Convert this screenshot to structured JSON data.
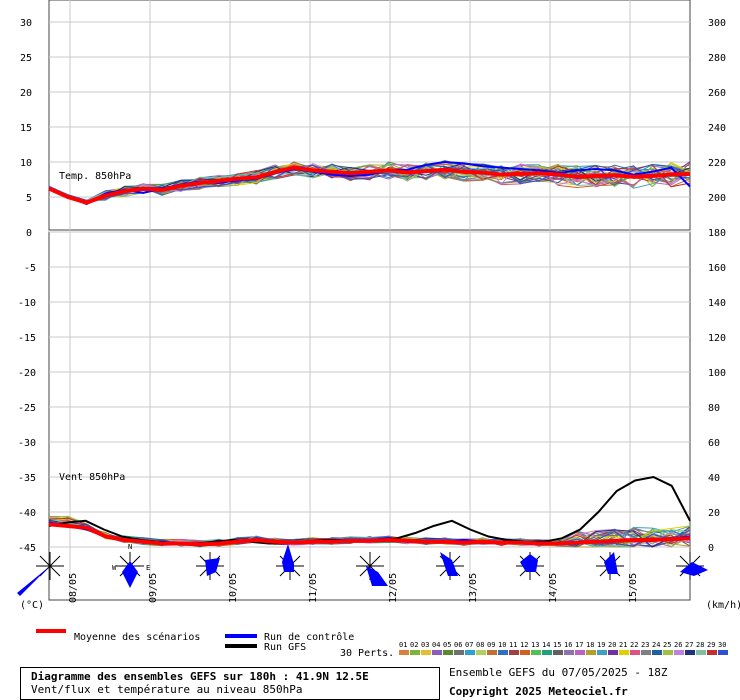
{
  "chart_data": {
    "type": "line",
    "upper_panel": {
      "label": "Temp. 850hPa",
      "left_ticks": [
        "30",
        "25",
        "20",
        "15",
        "10",
        "5",
        "0"
      ],
      "right_ticks": [
        "300",
        "280",
        "260",
        "240",
        "220",
        "200",
        "180"
      ],
      "mean_series": [
        6.2,
        5.0,
        4.2,
        5.2,
        5.8,
        6.2,
        6.0,
        6.6,
        7.0,
        7.3,
        7.6,
        7.8,
        8.6,
        9.2,
        8.8,
        8.6,
        8.4,
        8.6,
        8.8,
        8.5,
        8.7,
        8.9,
        8.6,
        8.5,
        8.2,
        8.3,
        8.4,
        8.2,
        7.9,
        8.0,
        8.1,
        7.9,
        8.0,
        8.2,
        8.3
      ],
      "control_series": [
        6.3,
        5.0,
        4.0,
        5.5,
        6.0,
        5.6,
        6.2,
        6.8,
        7.2,
        7.0,
        7.4,
        7.6,
        8.4,
        9.0,
        8.6,
        8.2,
        8.0,
        8.2,
        8.8,
        8.9,
        9.6,
        10.0,
        9.8,
        9.4,
        9.2,
        9.0,
        8.8,
        8.4,
        8.8,
        9.0,
        8.8,
        8.2,
        8.6,
        9.2,
        6.5
      ]
    },
    "lower_panel": {
      "label": "Vent 850hPa",
      "left_ticks": [
        "-5",
        "-10",
        "-15",
        "-20",
        "-25",
        "-30",
        "-35",
        "-40",
        "-45"
      ],
      "right_ticks": [
        "160",
        "140",
        "120",
        "100",
        "80",
        "60",
        "40",
        "20",
        "0"
      ],
      "mean_wind": [
        13,
        12,
        11,
        6,
        4,
        3,
        2,
        2,
        1.5,
        2,
        3,
        4,
        3,
        2.5,
        3,
        3,
        3.5,
        3.5,
        4,
        3.5,
        3,
        3,
        2.5,
        3,
        2.5,
        2.5,
        2,
        2,
        2.5,
        3,
        3.5,
        4,
        4,
        4.5,
        5
      ],
      "control_wind": [
        14,
        12,
        10,
        6,
        4,
        3,
        3,
        2,
        2,
        2,
        3,
        4,
        3,
        3,
        3,
        3,
        3,
        4,
        5,
        4,
        3,
        3,
        4,
        3,
        3,
        3,
        2,
        2,
        3,
        3,
        4,
        4,
        4,
        5,
        6
      ],
      "gfs_wind": [
        12,
        14,
        15,
        10,
        6,
        4,
        3,
        2,
        2,
        3,
        4,
        3,
        2,
        2,
        3,
        4,
        4,
        4,
        4,
        5,
        8,
        12,
        15,
        10,
        6,
        4,
        3,
        3,
        5,
        10,
        20,
        32,
        38,
        40,
        35,
        15
      ]
    },
    "x_ticks": [
      "08/05",
      "09/05",
      "10/05",
      "11/05",
      "12/05",
      "13/05",
      "14/05",
      "15/05"
    ],
    "left_unit": "(°C)",
    "right_unit": "(km/h)"
  },
  "legend": {
    "mean": "Moyenne des scénarios",
    "control": "Run de contrôle",
    "gfs": "Run GFS",
    "perts_label": "30 Perts.",
    "pert_numbers": [
      "01",
      "02",
      "03",
      "04",
      "05",
      "06",
      "07",
      "08",
      "09",
      "10",
      "11",
      "12",
      "13",
      "14",
      "15",
      "16",
      "17",
      "18",
      "19",
      "20",
      "21",
      "22",
      "23",
      "24",
      "25",
      "26",
      "27",
      "28",
      "29",
      "30"
    ],
    "pert_colors": [
      "#d9803a",
      "#7db43a",
      "#e0c030",
      "#8a5cc0",
      "#5a8a30",
      "#707070",
      "#30a0d0",
      "#b0d060",
      "#c07030",
      "#3070c0",
      "#a04040",
      "#d06020",
      "#50c050",
      "#20a080",
      "#606060",
      "#9070b0",
      "#c060c0",
      "#b0a030",
      "#40a0c0",
      "#7030a0",
      "#e0d000",
      "#e05080",
      "#808080",
      "#2060a0",
      "#a0c040",
      "#c080e0",
      "#203080",
      "#80c0a0",
      "#c03030",
      "#3050d0"
    ]
  },
  "info": {
    "title": "Diagramme des ensembles GEFS sur 180h : 41.9N 12.5E",
    "subtitle": "Vent/flux et température au niveau 850hPa",
    "ensemble": "Ensemble GEFS du 07/05/2025 - 18Z",
    "copyright": "Copyright 2025 Meteociel.fr"
  },
  "colors": {
    "mean": "#ff0000",
    "control": "#0000ff",
    "gfs": "#000000",
    "grid": "#bbbbbb",
    "wind_glyph": "#0000ff"
  }
}
